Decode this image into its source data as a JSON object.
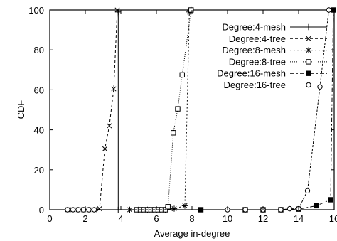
{
  "chart_data": {
    "type": "line",
    "title": "",
    "xlabel": "Average in-degree",
    "ylabel": "CDF",
    "xlim": [
      0,
      16
    ],
    "ylim": [
      0,
      100
    ],
    "xticks": [
      0,
      2,
      4,
      6,
      8,
      10,
      12,
      14,
      16
    ],
    "xtick_labels": [
      "0",
      "2",
      "4",
      "6",
      "8",
      "10",
      "12",
      "14",
      "16"
    ],
    "yticks": [
      0,
      20,
      40,
      60,
      80,
      100
    ],
    "ytick_labels": [
      "0",
      "20",
      "40",
      "60",
      "80",
      "100"
    ],
    "grid": false,
    "legend_position": "top-right",
    "series": [
      {
        "name": "Degree:4-mesh",
        "marker": "plus",
        "dash": "",
        "x": [
          3.85,
          3.85,
          3.9
        ],
        "y": [
          0,
          99,
          100
        ]
      },
      {
        "name": "Degree:4-tree",
        "marker": "x",
        "dash": "4,3",
        "x": [
          1.0,
          1.3,
          1.6,
          1.9,
          2.2,
          2.5,
          2.8,
          3.1,
          3.35,
          3.6,
          3.8
        ],
        "y": [
          0,
          0,
          0,
          0,
          0,
          0,
          0.5,
          30.5,
          42,
          60.5,
          100
        ]
      },
      {
        "name": "Degree:8-mesh",
        "marker": "star",
        "dash": "2,3",
        "x": [
          4.5,
          5.0,
          5.5,
          6.0,
          6.5,
          7.0,
          7.6,
          7.85,
          7.95
        ],
        "y": [
          0,
          0,
          0,
          0,
          0,
          0.5,
          2,
          99,
          100
        ]
      },
      {
        "name": "Degree:8-tree",
        "marker": "square-open",
        "dash": "1,2",
        "x": [
          4.9,
          5.1,
          5.3,
          5.5,
          5.7,
          5.9,
          6.1,
          6.3,
          6.5,
          6.65,
          6.95,
          7.2,
          7.45,
          7.95
        ],
        "y": [
          0,
          0,
          0,
          0,
          0,
          0,
          0,
          0,
          0,
          1.5,
          38.5,
          50.5,
          67.5,
          100
        ]
      },
      {
        "name": "Degree:16-mesh",
        "marker": "square-filled",
        "dash": "6,3,2,3",
        "x": [
          8.5,
          11.0,
          12.0,
          13.0,
          14.0,
          15.0,
          15.8,
          15.95
        ],
        "y": [
          0,
          0,
          0,
          0,
          0.3,
          2,
          5,
          100
        ]
      },
      {
        "name": "Degree:16-tree",
        "marker": "circle-open",
        "dash": "3,2",
        "x": [
          1.0,
          1.3,
          1.6,
          1.9,
          2.2,
          2.5,
          10.0,
          11.0,
          12.0,
          13.0,
          13.5,
          14.0,
          14.5,
          15.2,
          15.7
        ],
        "y": [
          0,
          0,
          0,
          0,
          0,
          0,
          0,
          0,
          0,
          0,
          0.5,
          0.5,
          9.5,
          61.5,
          100
        ]
      }
    ]
  }
}
